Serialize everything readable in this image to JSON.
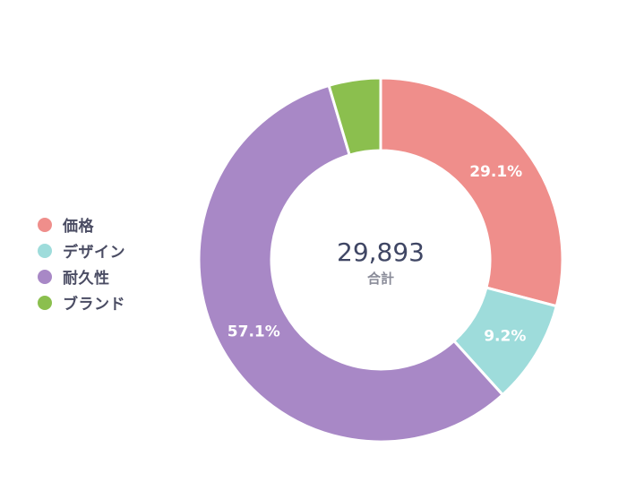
{
  "chart_data": {
    "type": "pie",
    "variant": "donut",
    "categories": [
      "価格",
      "デザイン",
      "耐久性",
      "ブランド"
    ],
    "values": [
      29.1,
      9.2,
      57.1,
      4.6
    ],
    "value_labels": [
      "29.1%",
      "9.2%",
      "57.1%",
      ""
    ],
    "colors": [
      "#ef8e8b",
      "#9edcdb",
      "#a888c6",
      "#8bbf4e"
    ],
    "legend_position": "left",
    "center": {
      "total": "29,893",
      "caption": "合計"
    }
  }
}
